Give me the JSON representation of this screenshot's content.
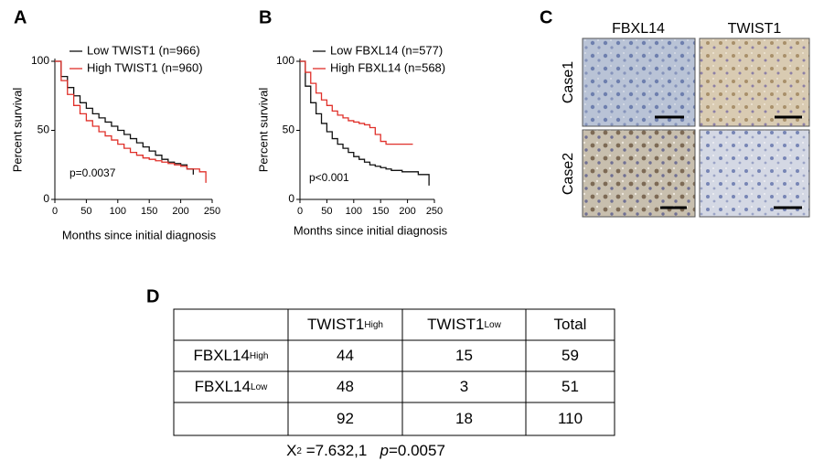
{
  "chart_data": [
    {
      "type": "line",
      "panel": "A",
      "xlabel": "Months since initial diagnosis",
      "ylabel": "Percent survival",
      "annotation": "p=0.0037",
      "x": [
        0,
        10,
        20,
        30,
        40,
        50,
        60,
        70,
        80,
        90,
        100,
        110,
        120,
        130,
        140,
        150,
        160,
        170,
        180,
        190,
        200,
        210,
        220,
        230,
        240
      ],
      "series": [
        {
          "name": "Low TWIST1 (n=966)",
          "color": "#111111",
          "values": [
            100,
            89,
            81,
            75,
            70,
            66,
            62,
            59,
            56,
            53,
            50,
            47,
            44,
            41,
            38,
            35,
            32,
            29,
            27,
            26,
            25,
            22,
            18,
            null,
            null
          ]
        },
        {
          "name": "High TWIST1 (n=960)",
          "color": "#e0302a",
          "values": [
            100,
            86,
            76,
            68,
            62,
            57,
            53,
            49,
            46,
            43,
            40,
            37,
            34,
            32,
            30,
            29,
            28,
            27,
            26,
            25,
            24,
            22,
            22,
            20,
            12
          ]
        }
      ],
      "xlim": [
        0,
        250
      ],
      "ylim": [
        0,
        100
      ],
      "xticks": [
        0,
        50,
        100,
        150,
        200,
        250
      ],
      "yticks": [
        0,
        50,
        100
      ]
    },
    {
      "type": "line",
      "panel": "B",
      "xlabel": "Months since initial diagnosis",
      "ylabel": "Percent survival",
      "annotation": "p<0.001",
      "x": [
        0,
        10,
        20,
        30,
        40,
        50,
        60,
        70,
        80,
        90,
        100,
        110,
        120,
        130,
        140,
        150,
        160,
        170,
        180,
        190,
        200,
        210,
        220,
        230,
        240
      ],
      "series": [
        {
          "name": "Low FBXL14 (n=577)",
          "color": "#111111",
          "values": [
            100,
            82,
            70,
            62,
            55,
            49,
            44,
            40,
            37,
            34,
            31,
            29,
            27,
            25,
            24,
            23,
            22,
            21,
            21,
            20,
            20,
            20,
            18,
            18,
            10
          ]
        },
        {
          "name": "High FBXL14 (n=568)",
          "color": "#e0302a",
          "values": [
            100,
            92,
            84,
            77,
            72,
            68,
            64,
            61,
            59,
            57,
            56,
            55,
            54,
            52,
            47,
            42,
            40,
            40,
            40,
            40,
            40,
            40,
            null,
            null,
            null
          ]
        }
      ],
      "xlim": [
        0,
        250
      ],
      "ylim": [
        0,
        100
      ],
      "xticks": [
        0,
        50,
        100,
        150,
        200,
        250
      ],
      "yticks": [
        0,
        50,
        100
      ]
    }
  ],
  "images": {
    "panel": "C",
    "columns": [
      "FBXL14",
      "TWIST1"
    ],
    "rows": [
      "Case1",
      "Case2"
    ]
  },
  "table": {
    "panel": "D",
    "header": [
      {
        "base": "TWIST1",
        "sup": "High"
      },
      {
        "base": "TWIST1",
        "sup": "Low"
      },
      "Total"
    ],
    "rows": [
      {
        "label": {
          "base": "FBXL14",
          "sup": "High"
        },
        "cells": [
          44,
          15,
          59
        ]
      },
      {
        "label": {
          "base": "FBXL14",
          "sup": "Low"
        },
        "cells": [
          48,
          3,
          51
        ]
      },
      {
        "cells": [
          92,
          18,
          110
        ]
      }
    ],
    "stat": {
      "symbol": "X",
      "sup": "2",
      "value": "=7.632,1",
      "p_label": "p",
      "p_value": "=0.0057"
    }
  }
}
